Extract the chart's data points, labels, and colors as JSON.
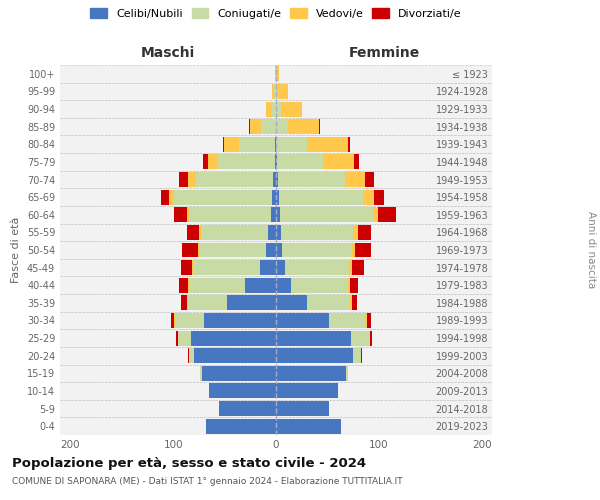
{
  "age_groups": [
    "0-4",
    "5-9",
    "10-14",
    "15-19",
    "20-24",
    "25-29",
    "30-34",
    "35-39",
    "40-44",
    "45-49",
    "50-54",
    "55-59",
    "60-64",
    "65-69",
    "70-74",
    "75-79",
    "80-84",
    "85-89",
    "90-94",
    "95-99",
    "100+"
  ],
  "birth_years": [
    "2019-2023",
    "2014-2018",
    "2009-2013",
    "2004-2008",
    "1999-2003",
    "1994-1998",
    "1989-1993",
    "1984-1988",
    "1979-1983",
    "1974-1978",
    "1969-1973",
    "1964-1968",
    "1959-1963",
    "1954-1958",
    "1949-1953",
    "1944-1948",
    "1939-1943",
    "1934-1938",
    "1929-1933",
    "1924-1928",
    "≤ 1923"
  ],
  "males_celibi": [
    68,
    55,
    65,
    72,
    80,
    83,
    70,
    48,
    30,
    16,
    10,
    8,
    5,
    4,
    3,
    1,
    1,
    0,
    0,
    0,
    0
  ],
  "males_coniugati": [
    0,
    0,
    0,
    2,
    5,
    12,
    28,
    38,
    55,
    65,
    65,
    65,
    80,
    95,
    75,
    55,
    35,
    15,
    5,
    2,
    0
  ],
  "males_vedovi": [
    0,
    0,
    0,
    0,
    0,
    0,
    1,
    1,
    1,
    1,
    1,
    2,
    2,
    5,
    8,
    10,
    15,
    10,
    5,
    2,
    1
  ],
  "males_divorziati": [
    0,
    0,
    0,
    0,
    1,
    2,
    3,
    5,
    8,
    10,
    15,
    12,
    12,
    8,
    8,
    5,
    1,
    1,
    0,
    0,
    0
  ],
  "females_nubili": [
    63,
    52,
    60,
    68,
    75,
    73,
    52,
    30,
    15,
    9,
    6,
    5,
    4,
    3,
    2,
    1,
    0,
    0,
    0,
    0,
    0
  ],
  "females_coniugate": [
    0,
    0,
    0,
    2,
    8,
    18,
    35,
    42,
    55,
    62,
    68,
    70,
    90,
    82,
    65,
    45,
    30,
    12,
    5,
    2,
    0
  ],
  "females_vedove": [
    0,
    0,
    0,
    0,
    0,
    0,
    1,
    2,
    2,
    3,
    3,
    5,
    5,
    10,
    20,
    30,
    40,
    30,
    20,
    10,
    3
  ],
  "females_divorziate": [
    0,
    0,
    0,
    0,
    1,
    2,
    4,
    5,
    8,
    12,
    15,
    12,
    18,
    10,
    8,
    5,
    2,
    1,
    0,
    0,
    0
  ],
  "col_cel": "#4777c0",
  "col_con": "#c8dba4",
  "col_ved": "#ffc84a",
  "col_div": "#cc0000",
  "title_main": "Popolazione per età, sesso e stato civile - 2024",
  "title_sub": "COMUNE DI SAPONARA (ME) - Dati ISTAT 1° gennaio 2024 - Elaborazione TUTTITALIA.IT",
  "ylabel_left": "Fasce di età",
  "ylabel_right": "Anni di nascita",
  "header_maschi": "Maschi",
  "header_femmine": "Femmine",
  "legend_labels": [
    "Celibi/Nubili",
    "Coniugati/e",
    "Vedovi/e",
    "Divorziati/e"
  ],
  "xlim": 210
}
